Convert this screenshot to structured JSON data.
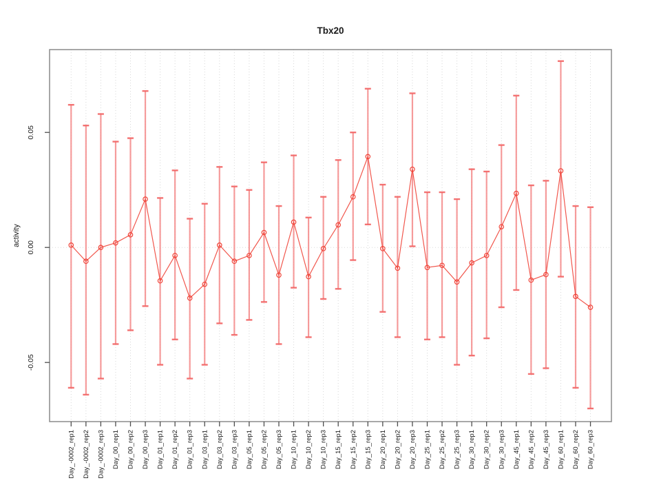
{
  "title": "Tbx20",
  "axes": {
    "ylabel": "activity",
    "ytick_labels": [
      "0.05",
      "0.00",
      "-0.05"
    ],
    "ytick_values": [
      0.05,
      0.0,
      -0.05
    ]
  },
  "colors": {
    "series_line": "#f04438",
    "point_stroke": "#f04438",
    "error_bar": "#f58a8a",
    "error_cap": "#f26a6a",
    "gridline": "#d6d6d6",
    "zero_line": "#d9d9d9",
    "box": "#8a8a8a",
    "tick": "#4d4d4d",
    "text": "#1a1a1a",
    "background": "#ffffff"
  },
  "chart_data": {
    "type": "line",
    "title": "Tbx20",
    "xlabel": "",
    "ylabel": "activity",
    "legend": "none",
    "grid": "dotted vertical gridline per category; dotted horizontal line at y=0",
    "marker": "open-circle",
    "error_bars": true,
    "ylim": [
      -0.0757,
      0.086
    ],
    "yticks": [
      -0.05,
      0.0,
      0.05
    ],
    "categories": [
      "Day_-0002_rep1",
      "Day_-0002_rep2",
      "Day_-0002_rep3",
      "Day_00_rep1",
      "Day_00_rep2",
      "Day_00_rep3",
      "Day_01_rep1",
      "Day_01_rep2",
      "Day_01_rep3",
      "Day_03_rep1",
      "Day_03_rep2",
      "Day_03_rep3",
      "Day_05_rep1",
      "Day_05_rep2",
      "Day_05_rep3",
      "Day_10_rep1",
      "Day_10_rep2",
      "Day_10_rep3",
      "Day_15_rep1",
      "Day_15_rep2",
      "Day_15_rep3",
      "Day_20_rep1",
      "Day_20_rep2",
      "Day_20_rep3",
      "Day_25_rep1",
      "Day_25_rep2",
      "Day_25_rep3",
      "Day_30_rep1",
      "Day_30_rep2",
      "Day_30_rep3",
      "Day_45_rep1",
      "Day_45_rep2",
      "Day_45_rep3",
      "Day_60_rep1",
      "Day_60_rep2",
      "Day_60_rep3"
    ],
    "values": [
      0.001,
      -0.006,
      0.0,
      0.002,
      0.0055,
      0.021,
      -0.0145,
      -0.0035,
      -0.022,
      -0.016,
      0.001,
      -0.006,
      -0.0035,
      0.0065,
      -0.012,
      0.011,
      -0.0127,
      -0.0005,
      0.0098,
      0.022,
      0.0395,
      -0.0005,
      -0.009,
      0.034,
      -0.0087,
      -0.0078,
      -0.015,
      -0.0067,
      -0.0035,
      0.009,
      0.0235,
      -0.0142,
      -0.0118,
      0.0333,
      -0.0213,
      -0.026
    ],
    "error_high": [
      0.062,
      0.053,
      0.058,
      0.046,
      0.0475,
      0.068,
      0.0215,
      0.0335,
      0.0125,
      0.019,
      0.035,
      0.0265,
      0.025,
      0.037,
      0.018,
      0.04,
      0.013,
      0.022,
      0.038,
      0.05,
      0.069,
      0.0273,
      0.022,
      0.067,
      0.024,
      0.024,
      0.021,
      0.034,
      0.033,
      0.0445,
      0.066,
      0.027,
      0.029,
      0.081,
      0.018,
      0.0175
    ],
    "error_low": [
      -0.061,
      -0.064,
      -0.057,
      -0.042,
      -0.036,
      -0.0255,
      -0.051,
      -0.04,
      -0.057,
      -0.051,
      -0.033,
      -0.038,
      -0.0315,
      -0.0237,
      -0.042,
      -0.0175,
      -0.039,
      -0.0224,
      -0.018,
      -0.0055,
      0.01,
      -0.028,
      -0.039,
      0.0005,
      -0.04,
      -0.039,
      -0.051,
      -0.047,
      -0.0395,
      -0.026,
      -0.0185,
      -0.055,
      -0.0525,
      -0.0127,
      -0.061,
      -0.07
    ]
  }
}
